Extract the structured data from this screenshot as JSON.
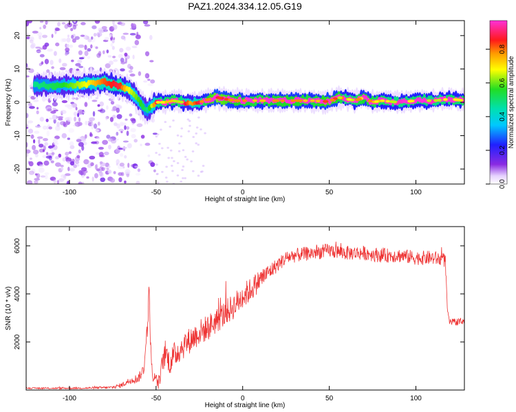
{
  "title": "PAZ1.2024.334.12.05.G19",
  "chart_data": [
    {
      "type": "heatmap",
      "xlabel": "Height of straight line (km)",
      "ylabel": "Frequency (Hz)",
      "xlim": [
        -125,
        128
      ],
      "ylim": [
        -24.5,
        24.5
      ],
      "xticks": [
        -100,
        -50,
        0,
        50,
        100
      ],
      "yticks": [
        -20,
        -10,
        0,
        10,
        20
      ],
      "colorbar": {
        "label": "Normalized spectral amplitude",
        "ticks": [
          "0.0",
          "0.2",
          "0.4",
          "0.6",
          "0.8"
        ],
        "range": [
          0,
          0.97
        ],
        "colormap": "rainbow (purple to red to magenta)"
      },
      "ridge": {
        "x": [
          -120,
          -105,
          -90,
          -80,
          -72,
          -66,
          -62,
          -58,
          -55,
          -52,
          -50,
          -45,
          -40,
          -35,
          -30,
          -25,
          -20,
          -15,
          -10,
          -5,
          0,
          10,
          20,
          30,
          40,
          50,
          55,
          60,
          65,
          70,
          75,
          80,
          90,
          100,
          110,
          120,
          128
        ],
        "frequency_hz": [
          5,
          5,
          5.5,
          6,
          5,
          4,
          2,
          -1,
          -2.5,
          -1,
          0,
          0,
          0.5,
          0,
          -0.3,
          0,
          0.8,
          1.5,
          1,
          0.5,
          0.5,
          0.5,
          0.5,
          0.5,
          0.5,
          0.2,
          1.5,
          1,
          0.5,
          1.5,
          0,
          0.5,
          0,
          0.5,
          0.5,
          1,
          0.5
        ],
        "amplitude": [
          0.35,
          0.4,
          0.5,
          0.6,
          0.65,
          0.5,
          0.45,
          0.4,
          0.35,
          0.5,
          0.65,
          0.75,
          0.8,
          0.7,
          0.55,
          0.65,
          0.85,
          0.95,
          0.9,
          0.85,
          0.85,
          0.8,
          0.85,
          0.85,
          0.8,
          0.9,
          0.85,
          0.7,
          0.75,
          0.85,
          0.8,
          0.75,
          0.7,
          0.75,
          0.7,
          0.75,
          0.75
        ]
      },
      "background_noise": {
        "x_range": [
          -125,
          -50
        ],
        "amplitude_range": [
          0.02,
          0.15
        ]
      }
    },
    {
      "type": "line",
      "xlabel": "Height of straight line (km)",
      "ylabel": "SNR (10 * v/v)",
      "xlim": [
        -125,
        128
      ],
      "ylim": [
        0,
        6800
      ],
      "xticks": [
        -100,
        -50,
        0,
        50,
        100
      ],
      "yticks": [
        2000,
        4000,
        6000
      ],
      "color": "#ee3333",
      "series": [
        {
          "x": [
            -125,
            -110,
            -90,
            -75,
            -70,
            -65,
            -60,
            -57,
            -56,
            -55,
            -54,
            -53,
            -52,
            -50,
            -48,
            -46,
            -44,
            -42,
            -40,
            -35,
            -30,
            -25,
            -20,
            -15,
            -10,
            -5,
            0,
            5,
            10,
            15,
            20,
            25,
            30,
            40,
            50,
            60,
            70,
            80,
            90,
            100,
            110,
            117,
            118,
            119,
            120,
            125,
            128
          ],
          "y": [
            80,
            70,
            80,
            110,
            200,
            400,
            500,
            900,
            1800,
            2600,
            4200,
            1500,
            600,
            400,
            300,
            1300,
            1500,
            1100,
            1400,
            1800,
            2100,
            2400,
            2600,
            2900,
            3200,
            3500,
            3900,
            4200,
            4600,
            4900,
            5200,
            5500,
            5600,
            5700,
            5800,
            5700,
            5700,
            5600,
            5600,
            5500,
            5500,
            5400,
            3500,
            2900,
            2800,
            2850,
            2900
          ],
          "noise": [
            30,
            30,
            40,
            60,
            100,
            150,
            200,
            250,
            350,
            400,
            400,
            400,
            300,
            250,
            350,
            500,
            500,
            500,
            550,
            550,
            550,
            550,
            550,
            550,
            550,
            550,
            550,
            500,
            450,
            350,
            300,
            300,
            300,
            300,
            300,
            300,
            300,
            300,
            300,
            300,
            300,
            300,
            200,
            150,
            150,
            150,
            150
          ]
        }
      ]
    }
  ]
}
